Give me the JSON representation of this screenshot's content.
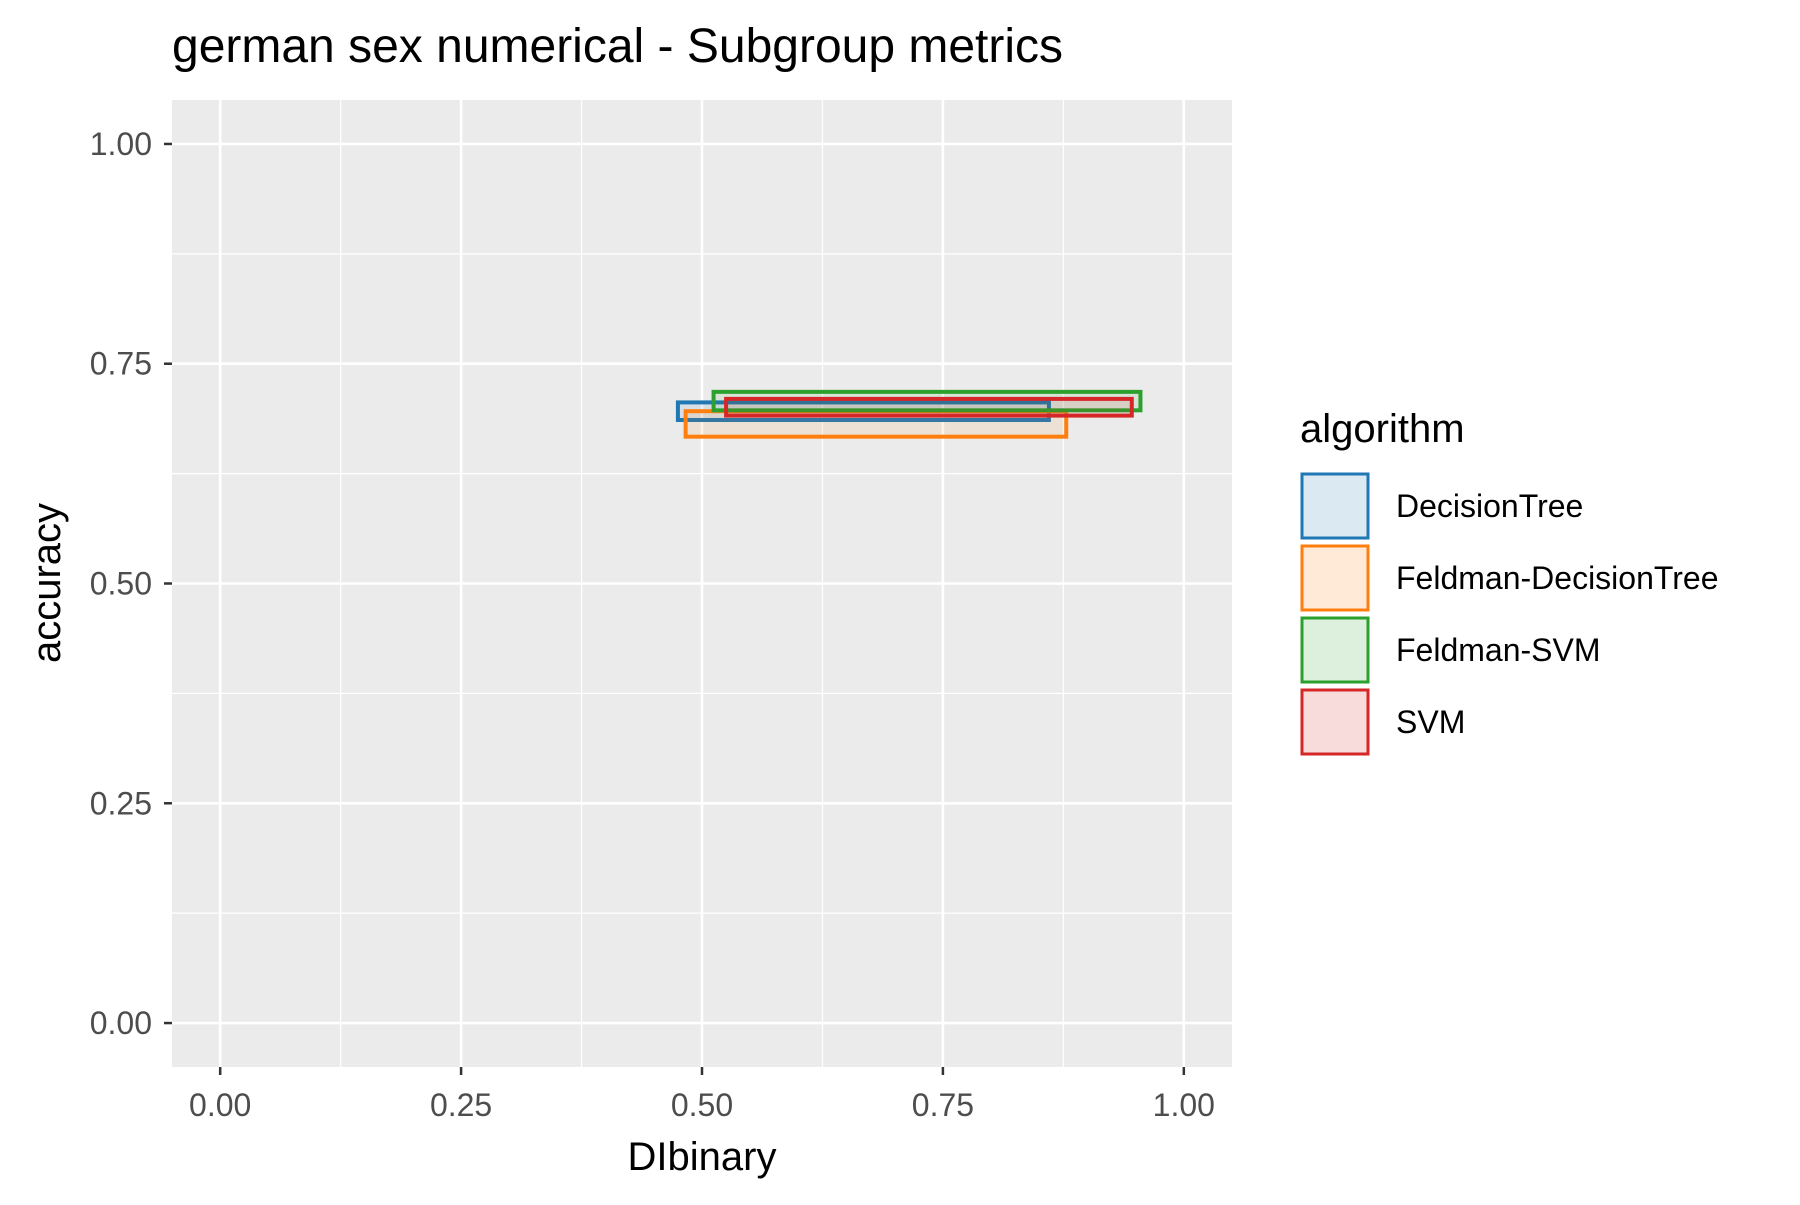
{
  "chart_data": {
    "type": "box",
    "title": "german sex numerical - Subgroup metrics",
    "xlabel": "DIbinary",
    "ylabel": "accuracy",
    "xlim": [
      -0.05,
      1.05
    ],
    "ylim": [
      -0.05,
      1.05
    ],
    "x_ticks": [
      0.0,
      0.25,
      0.5,
      0.75,
      1.0
    ],
    "x_tick_labels": [
      "0.00",
      "0.25",
      "0.50",
      "0.75",
      "1.00"
    ],
    "y_ticks": [
      0.0,
      0.25,
      0.5,
      0.75,
      1.0
    ],
    "y_tick_labels": [
      "0.00",
      "0.25",
      "0.50",
      "0.75",
      "1.00"
    ],
    "grid": true,
    "legend": {
      "title": "algorithm",
      "position": "right"
    },
    "series": [
      {
        "name": "DecisionTree",
        "color": "#1f77b4",
        "x_range": [
          0.475,
          0.86
        ],
        "y_range": [
          0.686,
          0.706
        ]
      },
      {
        "name": "Feldman-DecisionTree",
        "color": "#ff7f0e",
        "x_range": [
          0.483,
          0.878
        ],
        "y_range": [
          0.667,
          0.696
        ]
      },
      {
        "name": "Feldman-SVM",
        "color": "#2ca02c",
        "x_range": [
          0.512,
          0.955
        ],
        "y_range": [
          0.697,
          0.718
        ]
      },
      {
        "name": "SVM",
        "color": "#d62728",
        "x_range": [
          0.525,
          0.946
        ],
        "y_range": [
          0.691,
          0.71
        ]
      }
    ]
  }
}
